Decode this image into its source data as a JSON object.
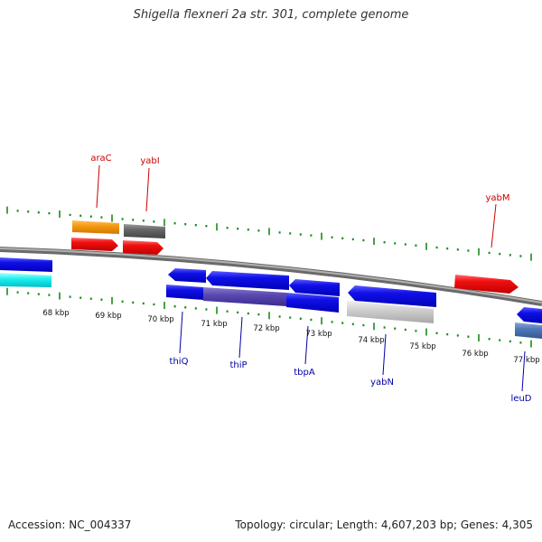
{
  "title": "Shigella flexneri 2a str. 301, complete genome",
  "accession_text": "Accession: NC_004337",
  "summary_text": "Topology: circular; Length: 4,607,203 bp; Genes: 4,305",
  "tick_labels": [
    "68 kbp",
    "69 kbp",
    "70 kbp",
    "71 kbp",
    "72 kbp",
    "73 kbp",
    "74 kbp",
    "75 kbp",
    "76 kbp",
    "77 kbp"
  ],
  "upper_gene_labels": [
    "araC",
    "yabI",
    "yabM"
  ],
  "lower_gene_labels": [
    "thiQ",
    "thiP",
    "tbpA",
    "yabN",
    "leuD"
  ],
  "colors": {
    "upper_label": "#cc0000",
    "lower_label": "#0000aa",
    "tick": "#1a8a1a",
    "backbone": "#888888"
  }
}
